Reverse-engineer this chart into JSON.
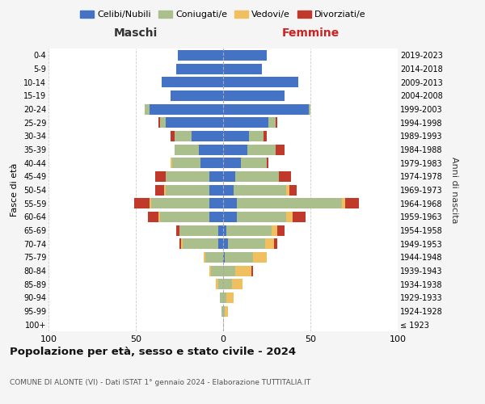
{
  "age_groups": [
    "100+",
    "95-99",
    "90-94",
    "85-89",
    "80-84",
    "75-79",
    "70-74",
    "65-69",
    "60-64",
    "55-59",
    "50-54",
    "45-49",
    "40-44",
    "35-39",
    "30-34",
    "25-29",
    "20-24",
    "15-19",
    "10-14",
    "5-9",
    "0-4"
  ],
  "birth_years": [
    "≤ 1923",
    "1924-1928",
    "1929-1933",
    "1934-1938",
    "1939-1943",
    "1944-1948",
    "1949-1953",
    "1954-1958",
    "1959-1963",
    "1964-1968",
    "1969-1973",
    "1974-1978",
    "1979-1983",
    "1984-1988",
    "1989-1993",
    "1994-1998",
    "1999-2003",
    "2004-2008",
    "2009-2013",
    "2014-2018",
    "2019-2023"
  ],
  "male": {
    "celibi": [
      0,
      0,
      0,
      0,
      0,
      0,
      3,
      3,
      8,
      8,
      8,
      8,
      13,
      14,
      18,
      33,
      42,
      30,
      35,
      27,
      26
    ],
    "coniugati": [
      0,
      1,
      2,
      3,
      7,
      10,
      20,
      22,
      28,
      33,
      25,
      25,
      16,
      14,
      10,
      3,
      3,
      0,
      0,
      0,
      0
    ],
    "vedovi": [
      0,
      0,
      0,
      1,
      1,
      1,
      1,
      0,
      1,
      1,
      1,
      0,
      1,
      0,
      0,
      0,
      0,
      0,
      0,
      0,
      0
    ],
    "divorziati": [
      0,
      0,
      0,
      0,
      0,
      0,
      1,
      2,
      6,
      9,
      5,
      6,
      0,
      0,
      2,
      1,
      0,
      0,
      0,
      0,
      0
    ]
  },
  "female": {
    "nubili": [
      0,
      0,
      0,
      0,
      0,
      1,
      3,
      2,
      8,
      8,
      6,
      7,
      10,
      14,
      15,
      26,
      49,
      35,
      43,
      22,
      25
    ],
    "coniugate": [
      0,
      1,
      2,
      5,
      7,
      16,
      21,
      26,
      28,
      60,
      30,
      25,
      15,
      16,
      8,
      4,
      1,
      0,
      0,
      0,
      0
    ],
    "vedove": [
      0,
      2,
      4,
      6,
      9,
      8,
      5,
      3,
      4,
      2,
      2,
      0,
      0,
      0,
      0,
      0,
      0,
      0,
      0,
      0,
      0
    ],
    "divorziate": [
      0,
      0,
      0,
      0,
      1,
      0,
      2,
      4,
      7,
      8,
      4,
      7,
      1,
      5,
      2,
      1,
      0,
      0,
      0,
      0,
      0
    ]
  },
  "colors": {
    "celibi_nubili": "#4472C4",
    "coniugati": "#AABF8B",
    "vedovi": "#F0C060",
    "divorziati": "#C0392B"
  },
  "xlim": 100,
  "title": "Popolazione per età, sesso e stato civile - 2024",
  "subtitle": "COMUNE DI ALONTE (VI) - Dati ISTAT 1° gennaio 2024 - Elaborazione TUTTITALIA.IT",
  "xlabel_left": "Maschi",
  "xlabel_right": "Femmine",
  "ylabel_left": "Fasce di età",
  "ylabel_right": "Anni di nascita",
  "legend_labels": [
    "Celibi/Nubili",
    "Coniugati/e",
    "Vedovi/e",
    "Divorziati/e"
  ],
  "bg_color": "#f5f5f5",
  "plot_bg": "#ffffff",
  "grid_color": "#cccccc"
}
